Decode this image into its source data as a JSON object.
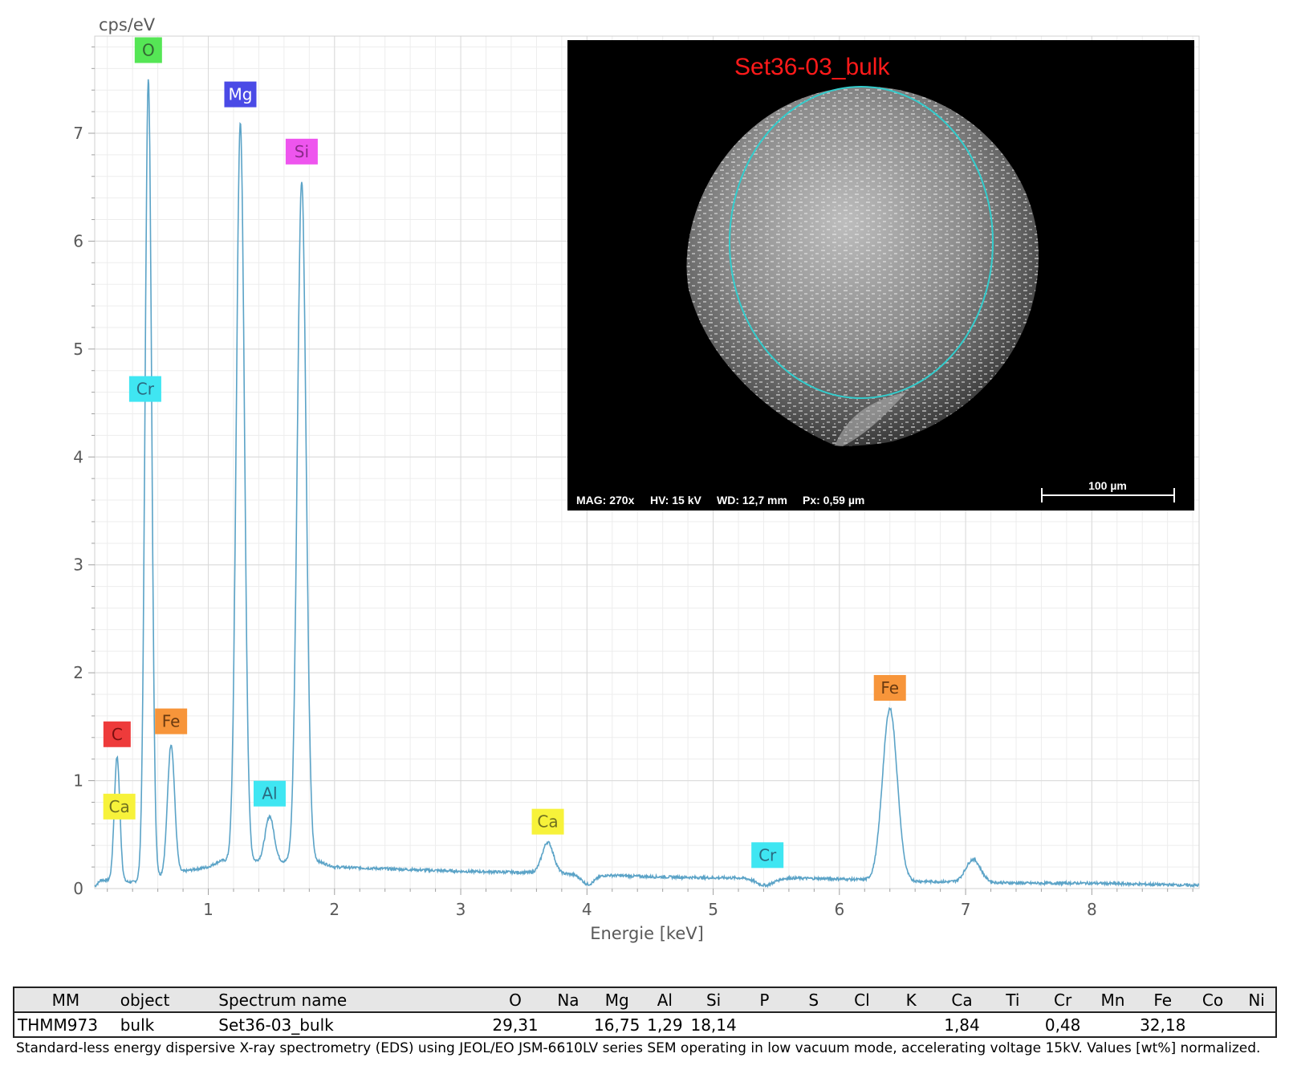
{
  "chart_data": {
    "type": "line",
    "ylabel": "cps/eV",
    "xlabel": "Energie [keV]",
    "xlim": [
      0.1,
      8.85
    ],
    "ylim": [
      0,
      7.9
    ],
    "x_ticks": [
      1,
      2,
      3,
      4,
      5,
      6,
      7,
      8
    ],
    "y_ticks": [
      0,
      1,
      2,
      3,
      4,
      5,
      6,
      7
    ],
    "grid": true,
    "line_color": "#5ba3c7",
    "baseline": [
      [
        0.1,
        0.02
      ],
      [
        0.15,
        0.08
      ],
      [
        0.4,
        0.06
      ],
      [
        0.85,
        0.17
      ],
      [
        1.0,
        0.2
      ],
      [
        1.1,
        0.26
      ],
      [
        1.6,
        0.25
      ],
      [
        1.85,
        0.26
      ],
      [
        2.0,
        0.2
      ],
      [
        2.5,
        0.18
      ],
      [
        3.0,
        0.16
      ],
      [
        3.5,
        0.15
      ],
      [
        4.0,
        0.13
      ],
      [
        4.5,
        0.11
      ],
      [
        5.0,
        0.1
      ],
      [
        5.5,
        0.1
      ],
      [
        6.0,
        0.09
      ],
      [
        6.5,
        0.07
      ],
      [
        7.0,
        0.06
      ],
      [
        7.5,
        0.05
      ],
      [
        8.0,
        0.05
      ],
      [
        8.85,
        0.03
      ]
    ],
    "peaks": [
      {
        "x": 0.277,
        "y": 1.22,
        "w": 0.022
      },
      {
        "x": 0.525,
        "y": 7.5,
        "w": 0.026
      },
      {
        "x": 0.705,
        "y": 1.34,
        "w": 0.028
      },
      {
        "x": 1.254,
        "y": 7.1,
        "w": 0.032
      },
      {
        "x": 1.486,
        "y": 0.67,
        "w": 0.035
      },
      {
        "x": 1.74,
        "y": 6.56,
        "w": 0.035
      },
      {
        "x": 3.69,
        "y": 0.43,
        "w": 0.045
      },
      {
        "x": 4.01,
        "y": 0.04,
        "w": 0.05
      },
      {
        "x": 5.41,
        "y": 0.03,
        "w": 0.07
      },
      {
        "x": 6.4,
        "y": 1.67,
        "w": 0.058
      },
      {
        "x": 7.06,
        "y": 0.27,
        "w": 0.058
      }
    ],
    "annotations": [
      {
        "text": "O",
        "x": 0.525,
        "y": 7.77,
        "bg": "#55e655",
        "fg": "#336633"
      },
      {
        "text": "Mg",
        "x": 1.254,
        "y": 7.36,
        "bg": "#4a4ae6",
        "fg": "#ffffff"
      },
      {
        "text": "Si",
        "x": 1.74,
        "y": 6.83,
        "bg": "#ee55ee",
        "fg": "#8a2a8a"
      },
      {
        "text": "Cr",
        "x": 0.5,
        "y": 4.63,
        "bg": "#3fe6f2",
        "fg": "#2a6a80"
      },
      {
        "text": "C",
        "x": 0.277,
        "y": 1.43,
        "bg": "#ee3b3b",
        "fg": "#7a1010"
      },
      {
        "text": "Fe",
        "x": 0.705,
        "y": 1.55,
        "bg": "#f7953a",
        "fg": "#6a3a10"
      },
      {
        "text": "Ca",
        "x": 0.295,
        "y": 0.76,
        "bg": "#f7f23a",
        "fg": "#707020"
      },
      {
        "text": "Al",
        "x": 1.486,
        "y": 0.88,
        "bg": "#3fe6f2",
        "fg": "#2a6a80"
      },
      {
        "text": "Ca",
        "x": 3.69,
        "y": 0.62,
        "bg": "#f7f23a",
        "fg": "#707020"
      },
      {
        "text": "Cr",
        "x": 5.43,
        "y": 0.31,
        "bg": "#3fe6f2",
        "fg": "#2a6a80"
      },
      {
        "text": "Fe",
        "x": 6.4,
        "y": 1.86,
        "bg": "#f7953a",
        "fg": "#6a3a10"
      }
    ]
  },
  "sem_image": {
    "title": "Set36-03_bulk",
    "mag": "MAG: 270x",
    "hv": "HV: 15 kV",
    "wd": "WD: 12,7 mm",
    "px": "Px: 0,59 µm",
    "scale_label": "100 µm"
  },
  "table": {
    "headers": [
      "MM",
      "object",
      "Spectrum name",
      "O",
      "Na",
      "Mg",
      "Al",
      "Si",
      "P",
      "S",
      "Cl",
      "K",
      "Ca",
      "Ti",
      "Cr",
      "Mn",
      "Fe",
      "Co",
      "Ni"
    ],
    "row": [
      "THMM973",
      "bulk",
      "Set36-03_bulk",
      "29,31",
      "",
      "16,75",
      "1,29",
      "18,14",
      "",
      "",
      "",
      "",
      "1,84",
      "",
      "0,48",
      "",
      "32,18",
      "",
      ""
    ]
  },
  "footnote": "Standard-less energy dispersive X-ray spectrometry (EDS) using JEOL/EO JSM-6610LV series SEM operating in low vacuum mode, accelerating voltage 15kV. Values [wt%] normalized."
}
